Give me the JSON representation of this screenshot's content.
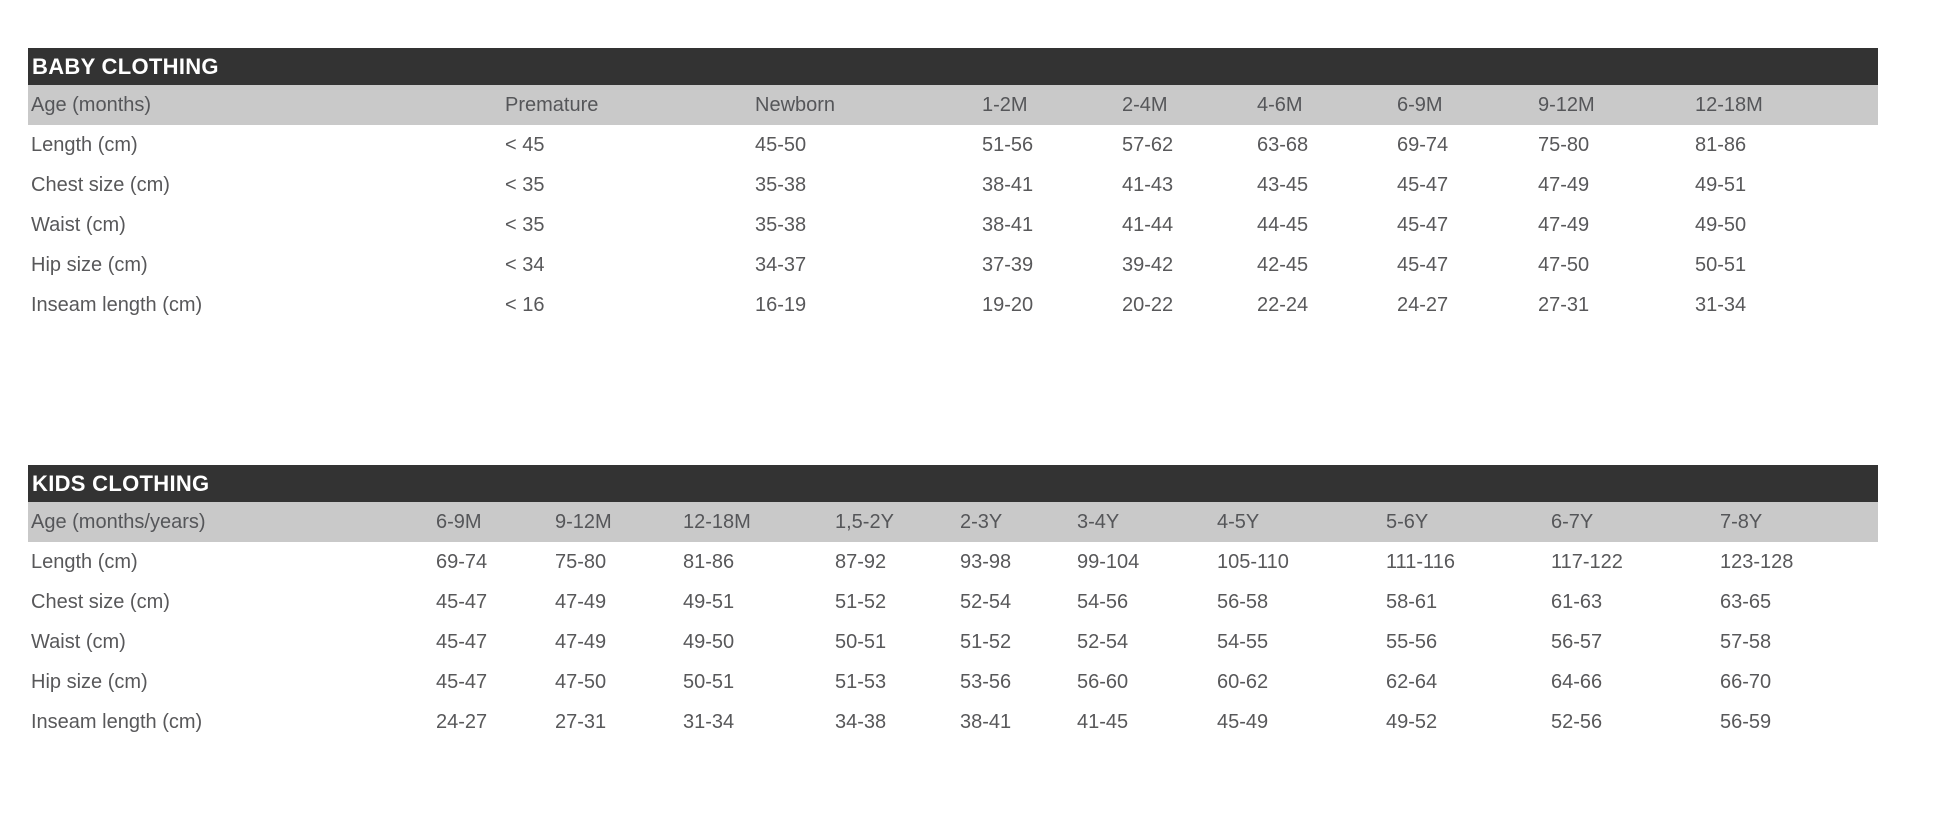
{
  "colors": {
    "title_band_background": "#333333",
    "title_band_text": "#ffffff",
    "header_row_background": "#c9c9c9",
    "body_text": "#58585a",
    "page_background": "#ffffff"
  },
  "tables": [
    {
      "title": "BABY CLOTHING",
      "header": [
        "Age (months)",
        "Premature",
        "Newborn",
        "1-2M",
        "2-4M",
        "4-6M",
        "6-9M",
        "9-12M",
        "12-18M"
      ],
      "rows": [
        [
          "Length (cm)",
          "< 45",
          "45-50",
          "51-56",
          "57-62",
          "63-68",
          "69-74",
          "75-80",
          "81-86"
        ],
        [
          "Chest size (cm)",
          "< 35",
          "35-38",
          "38-41",
          "41-43",
          "43-45",
          "45-47",
          "47-49",
          "49-51"
        ],
        [
          "Waist (cm)",
          "< 35",
          "35-38",
          "38-41",
          "41-44",
          "44-45",
          "45-47",
          "47-49",
          "49-50"
        ],
        [
          "Hip size (cm)",
          "< 34",
          "34-37",
          "37-39",
          "39-42",
          "42-45",
          "45-47",
          "47-50",
          "50-51"
        ],
        [
          "Inseam length (cm)",
          "< 16",
          "16-19",
          "19-20",
          "20-22",
          "22-24",
          "24-27",
          "27-31",
          "31-34"
        ]
      ]
    },
    {
      "title": "KIDS CLOTHING",
      "header": [
        "Age (months/years)",
        "6-9M",
        "9-12M",
        "12-18M",
        "1,5-2Y",
        "2-3Y",
        "3-4Y",
        "4-5Y",
        "5-6Y",
        "6-7Y",
        "7-8Y"
      ],
      "rows": [
        [
          "Length (cm)",
          "69-74",
          "75-80",
          "81-86",
          "87-92",
          "93-98",
          "99-104",
          "105-110",
          "111-116",
          "117-122",
          "123-128"
        ],
        [
          "Chest size (cm)",
          "45-47",
          "47-49",
          "49-51",
          "51-52",
          "52-54",
          "54-56",
          "56-58",
          "58-61",
          "61-63",
          "63-65"
        ],
        [
          "Waist (cm)",
          "45-47",
          "47-49",
          "49-50",
          "50-51",
          "51-52",
          "52-54",
          "54-55",
          "55-56",
          "56-57",
          "57-58"
        ],
        [
          "Hip size (cm)",
          "45-47",
          "47-50",
          "50-51",
          "51-53",
          "53-56",
          "56-60",
          "60-62",
          "62-64",
          "64-66",
          "66-70"
        ],
        [
          "Inseam length (cm)",
          "24-27",
          "27-31",
          "31-34",
          "34-38",
          "38-41",
          "41-45",
          "45-49",
          "49-52",
          "52-56",
          "56-59"
        ]
      ]
    }
  ]
}
